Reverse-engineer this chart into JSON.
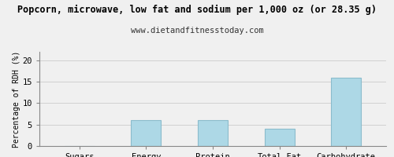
{
  "title": "Popcorn, microwave, low fat and sodium per 1,000 oz (or 28.35 g)",
  "subtitle": "www.dietandfitnesstoday.com",
  "categories": [
    "Sugars",
    "Energy",
    "Protein",
    "Total-Fat",
    "Carbohydrate"
  ],
  "values": [
    0,
    6,
    6,
    4,
    16
  ],
  "bar_color": "#add8e6",
  "bar_edge_color": "#8bbccc",
  "ylabel": "Percentage of RDH (%)",
  "ylim": [
    0,
    22
  ],
  "yticks": [
    0,
    5,
    10,
    15,
    20
  ],
  "background_color": "#f0f0f0",
  "grid_color": "#cccccc",
  "title_fontsize": 8.5,
  "subtitle_fontsize": 7.5,
  "axis_label_fontsize": 7,
  "tick_fontsize": 7.5
}
